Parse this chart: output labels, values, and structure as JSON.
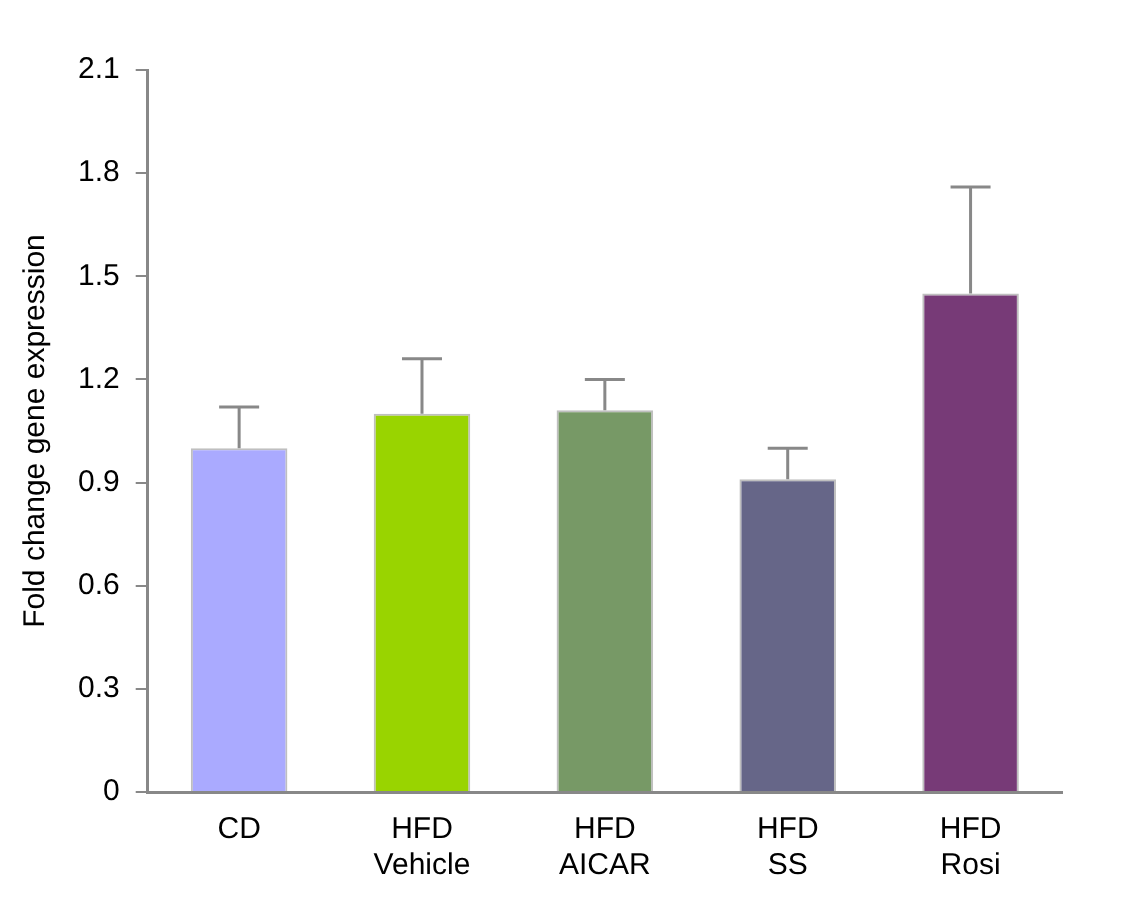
{
  "chart_data": {
    "type": "bar",
    "ylabel": "Fold change gene expression",
    "categories": [
      "CD",
      "HFD\nVehicle",
      "HFD\nAICAR",
      "HFD\nSS",
      "HFD\nRosi"
    ],
    "values": [
      1.0,
      1.1,
      1.11,
      0.91,
      1.45
    ],
    "errors": [
      0.12,
      0.16,
      0.09,
      0.09,
      0.31
    ],
    "colors": [
      "#aaaaff",
      "#99d400",
      "#779966",
      "#666688",
      "#773a77"
    ],
    "ylim": [
      0,
      2.1
    ],
    "yticks": [
      0,
      0.3,
      0.6,
      0.9,
      1.2,
      1.5,
      1.8,
      2.1
    ],
    "grid": false,
    "legend": false
  }
}
